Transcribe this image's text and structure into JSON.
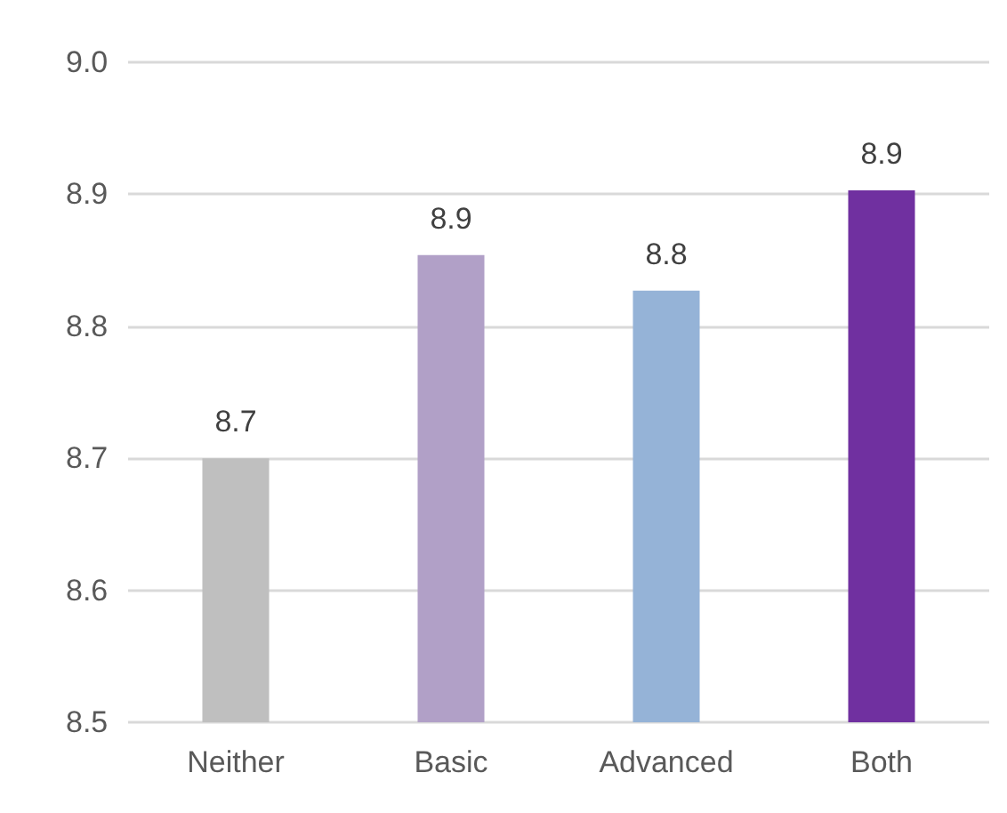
{
  "chart_data": {
    "type": "bar",
    "categories": [
      "Neither",
      "Basic",
      "Advanced",
      "Both"
    ],
    "values": [
      8.7,
      8.854,
      8.827,
      8.903
    ],
    "colors": [
      "#bfbfbf",
      "#b1a0c7",
      "#95b3d7",
      "#7030a0"
    ],
    "value_labels": [
      "8.7",
      "8.9",
      "8.8",
      "8.9"
    ],
    "ylim": [
      8.5,
      9.0
    ],
    "yticks": [
      8.5,
      8.6,
      8.7,
      8.8,
      8.9,
      {
        "value": 9.0,
        "label": "9.0"
      }
    ],
    "grid": "y"
  }
}
